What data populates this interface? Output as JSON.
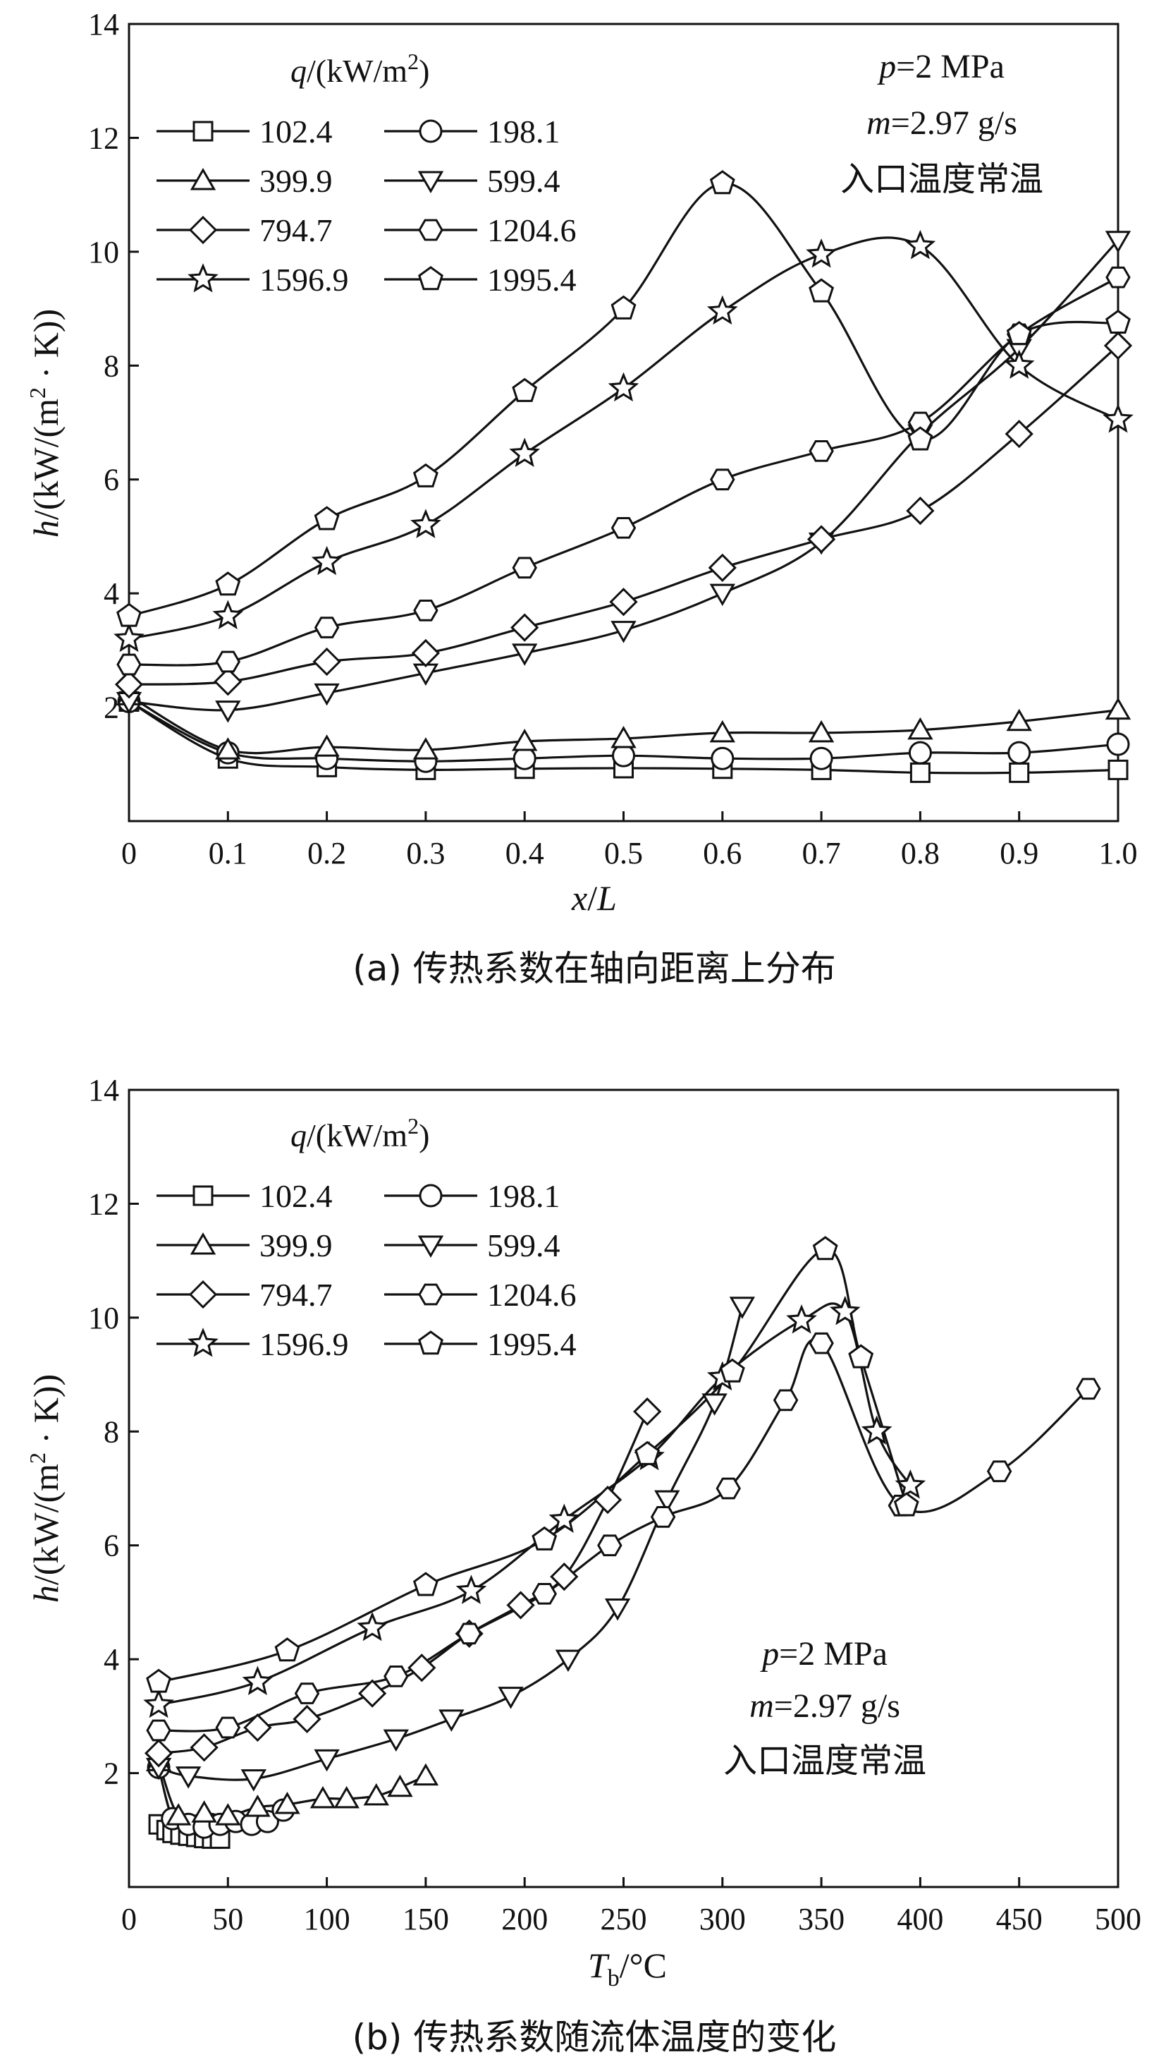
{
  "chart_data": [
    {
      "type": "line",
      "panel_id": "a",
      "caption": "(a) 传热系数在轴向距离上分布",
      "xlabel": "x/L",
      "ylabel": "h/(kW/(m2 · K))",
      "xlim": [
        0,
        1.0
      ],
      "ylim": [
        0,
        14
      ],
      "xticks": [
        "0",
        "0.1",
        "0.2",
        "0.3",
        "0.4",
        "0.5",
        "0.6",
        "0.7",
        "0.8",
        "0.9",
        "1.0"
      ],
      "yticks": [
        "14",
        "12",
        "10",
        "8",
        "6",
        "4",
        "2"
      ],
      "legend_title": "q/(kW/m2)",
      "annotations": [
        "p=2 MPa",
        "m=2.97 g/s",
        "入口温度常温"
      ],
      "series": [
        {
          "name": "102.4",
          "marker": "square",
          "x": [
            0,
            0.1,
            0.2,
            0.3,
            0.4,
            0.5,
            0.6,
            0.7,
            0.8,
            0.9,
            1.0
          ],
          "y": [
            2.1,
            1.1,
            0.95,
            0.9,
            0.92,
            0.93,
            0.92,
            0.9,
            0.85,
            0.85,
            0.9
          ]
        },
        {
          "name": "198.1",
          "marker": "circle",
          "x": [
            0,
            0.1,
            0.2,
            0.3,
            0.4,
            0.5,
            0.6,
            0.7,
            0.8,
            0.9,
            1.0
          ],
          "y": [
            2.1,
            1.2,
            1.1,
            1.05,
            1.1,
            1.15,
            1.1,
            1.1,
            1.2,
            1.2,
            1.35
          ]
        },
        {
          "name": "399.9",
          "marker": "triangle-up",
          "x": [
            0,
            0.1,
            0.2,
            0.3,
            0.4,
            0.5,
            0.6,
            0.7,
            0.8,
            0.9,
            1.0
          ],
          "y": [
            2.2,
            1.25,
            1.3,
            1.25,
            1.4,
            1.45,
            1.55,
            1.55,
            1.6,
            1.75,
            1.95
          ]
        },
        {
          "name": "599.4",
          "marker": "triangle-down",
          "x": [
            0,
            0.1,
            0.2,
            0.3,
            0.4,
            0.5,
            0.6,
            0.7,
            0.8,
            0.9,
            1.0
          ],
          "y": [
            2.1,
            1.95,
            2.25,
            2.6,
            2.95,
            3.35,
            4.0,
            4.9,
            6.8,
            8.3,
            10.2
          ]
        },
        {
          "name": "794.7",
          "marker": "diamond",
          "x": [
            0,
            0.1,
            0.2,
            0.3,
            0.4,
            0.5,
            0.6,
            0.7,
            0.8,
            0.9,
            1.0
          ],
          "y": [
            2.4,
            2.45,
            2.8,
            2.95,
            3.4,
            3.85,
            4.45,
            4.95,
            5.45,
            6.8,
            8.35
          ]
        },
        {
          "name": "1204.6",
          "marker": "hexagon",
          "x": [
            0,
            0.1,
            0.2,
            0.3,
            0.4,
            0.5,
            0.6,
            0.7,
            0.8,
            0.9,
            1.0
          ],
          "y": [
            2.75,
            2.8,
            3.4,
            3.7,
            4.45,
            5.15,
            6.0,
            6.5,
            7.0,
            8.55,
            9.55
          ]
        },
        {
          "name": "1596.9",
          "marker": "star",
          "x": [
            0,
            0.1,
            0.2,
            0.3,
            0.4,
            0.5,
            0.6,
            0.7,
            0.8,
            0.9,
            1.0
          ],
          "y": [
            3.2,
            3.6,
            4.55,
            5.2,
            6.45,
            7.6,
            8.95,
            9.95,
            10.1,
            8.0,
            7.05
          ]
        },
        {
          "name": "1995.4",
          "marker": "pentagon",
          "x": [
            0,
            0.1,
            0.2,
            0.3,
            0.4,
            0.5,
            0.6,
            0.7,
            0.8,
            0.9,
            1.0
          ],
          "y": [
            3.6,
            4.15,
            5.3,
            6.05,
            7.55,
            9.0,
            11.2,
            9.3,
            6.7,
            8.55,
            8.75
          ]
        }
      ]
    },
    {
      "type": "line",
      "panel_id": "b",
      "caption": "(b) 传热系数随流体温度的变化",
      "xlabel": "Tb/°C",
      "ylabel": "h/(kW/(m2 · K))",
      "xlim": [
        0,
        500
      ],
      "ylim": [
        0,
        14
      ],
      "xticks": [
        "0",
        "50",
        "100",
        "150",
        "200",
        "250",
        "300",
        "350",
        "400",
        "450",
        "500"
      ],
      "yticks": [
        "14",
        "12",
        "10",
        "8",
        "6",
        "4",
        "2"
      ],
      "legend_title": "q/(kW/m2)",
      "annotations": [
        "p=2 MPa",
        "m=2.97 g/s",
        "入口温度常温"
      ],
      "series": [
        {
          "name": "102.4",
          "marker": "square",
          "x": [
            15,
            19,
            22,
            26,
            30,
            34,
            38,
            42,
            46
          ],
          "y": [
            1.1,
            1.0,
            0.95,
            0.92,
            0.9,
            0.88,
            0.86,
            0.85,
            0.85
          ]
        },
        {
          "name": "198.1",
          "marker": "circle",
          "x": [
            15,
            22,
            30,
            38,
            46,
            54,
            62,
            70,
            78
          ],
          "y": [
            2.1,
            1.2,
            1.1,
            1.05,
            1.1,
            1.15,
            1.1,
            1.15,
            1.35
          ]
        },
        {
          "name": "399.9",
          "marker": "triangle-up",
          "x": [
            15,
            25,
            38,
            50,
            65,
            80,
            98,
            110,
            125,
            137,
            150
          ],
          "y": [
            2.2,
            1.25,
            1.3,
            1.25,
            1.4,
            1.45,
            1.55,
            1.55,
            1.6,
            1.75,
            1.95
          ]
        },
        {
          "name": "599.4",
          "marker": "triangle-down",
          "x": [
            15,
            30,
            63,
            100,
            135,
            163,
            193,
            222,
            247,
            272,
            296,
            310
          ],
          "y": [
            2.1,
            1.95,
            1.9,
            2.25,
            2.6,
            2.95,
            3.35,
            4.0,
            4.9,
            6.8,
            8.5,
            10.2
          ]
        },
        {
          "name": "794.7",
          "marker": "diamond",
          "x": [
            15,
            38,
            65,
            90,
            123,
            148,
            172,
            198,
            220,
            242,
            262
          ],
          "y": [
            2.35,
            2.45,
            2.8,
            2.95,
            3.4,
            3.85,
            4.45,
            4.95,
            5.45,
            6.8,
            8.35
          ]
        },
        {
          "name": "1204.6",
          "marker": "hexagon",
          "x": [
            15,
            50,
            90,
            135,
            172,
            210,
            243,
            270,
            303,
            332,
            350,
            390,
            440,
            485
          ],
          "y": [
            2.75,
            2.8,
            3.4,
            3.7,
            4.45,
            5.15,
            6.0,
            6.5,
            7.0,
            8.55,
            9.55,
            6.7,
            7.3,
            8.75
          ]
        },
        {
          "name": "1596.9",
          "marker": "star",
          "x": [
            15,
            65,
            123,
            173,
            220,
            263,
            300,
            340,
            362,
            378,
            395
          ],
          "y": [
            3.2,
            3.6,
            4.55,
            5.2,
            6.45,
            7.55,
            8.95,
            9.95,
            10.1,
            8.0,
            7.05
          ]
        },
        {
          "name": "1995.4",
          "marker": "pentagon",
          "x": [
            15,
            80,
            150,
            210,
            262,
            305,
            352,
            370,
            393
          ],
          "y": [
            3.6,
            4.15,
            5.3,
            6.1,
            7.6,
            9.05,
            11.2,
            9.3,
            6.7
          ]
        }
      ]
    }
  ]
}
